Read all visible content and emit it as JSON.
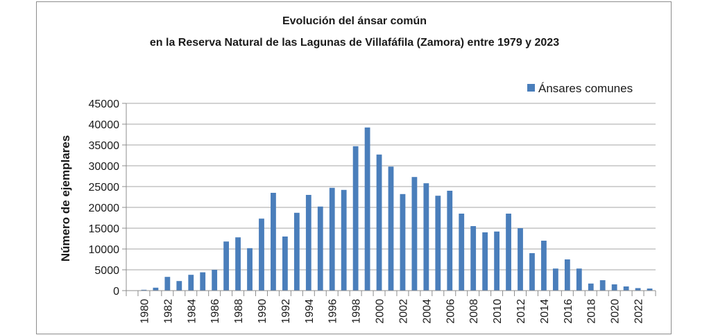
{
  "chart_data": {
    "type": "bar",
    "title": "Evolución del ánsar común",
    "subtitle": "en la Reserva Natural de las Lagunas de Villafáfila (Zamora) entre 1979 y 2023",
    "xlabel": "",
    "ylabel": "Número de ejemplares",
    "ylim": [
      0,
      45000
    ],
    "yticks": [
      0,
      5000,
      10000,
      15000,
      20000,
      25000,
      30000,
      35000,
      40000,
      45000
    ],
    "xtick_labels": [
      "1980",
      "1982",
      "1984",
      "1986",
      "1988",
      "1990",
      "1992",
      "1994",
      "1996",
      "1998",
      "2000",
      "2002",
      "2004",
      "2006",
      "2008",
      "2010",
      "2012",
      "2014",
      "2016",
      "2018",
      "2020",
      "2022"
    ],
    "grid": true,
    "legend_position": "top-right",
    "bar_color": "#4a7ebb",
    "categories": [
      "1979",
      "1980",
      "1981",
      "1982",
      "1983",
      "1984",
      "1985",
      "1986",
      "1987",
      "1988",
      "1989",
      "1990",
      "1991",
      "1992",
      "1993",
      "1994",
      "1995",
      "1996",
      "1997",
      "1998",
      "1999",
      "2000",
      "2001",
      "2002",
      "2003",
      "2004",
      "2005",
      "2006",
      "2007",
      "2008",
      "2009",
      "2010",
      "2011",
      "2012",
      "2013",
      "2014",
      "2015",
      "2016",
      "2017",
      "2018",
      "2019",
      "2020",
      "2021",
      "2022",
      "2023"
    ],
    "series": [
      {
        "name": "Ánsares comunes",
        "values": [
          0,
          200,
          700,
          3300,
          2300,
          3800,
          4400,
          5000,
          11800,
          12800,
          10200,
          17300,
          23500,
          13000,
          18700,
          23000,
          20200,
          24700,
          24200,
          34700,
          39200,
          32700,
          29800,
          23200,
          27300,
          25800,
          22800,
          24000,
          18500,
          15500,
          14000,
          14200,
          18500,
          15000,
          9000,
          12000,
          5300,
          7500,
          5300,
          1700,
          2500,
          1500,
          1000,
          600,
          500
        ]
      }
    ]
  }
}
